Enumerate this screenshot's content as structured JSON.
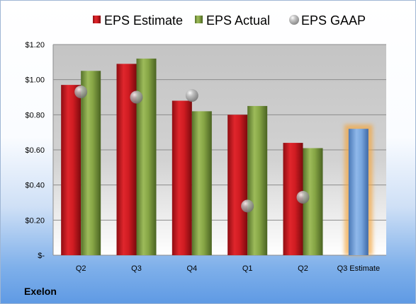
{
  "company_name": "Exelon",
  "chart_data": {
    "type": "bar",
    "categories": [
      "Q2",
      "Q3",
      "Q4",
      "Q1",
      "Q2",
      "Q3 Estimate"
    ],
    "series": [
      {
        "name": "EPS Estimate",
        "values": [
          0.97,
          1.09,
          0.88,
          0.8,
          0.64,
          null
        ],
        "color": "#c0181f"
      },
      {
        "name": "EPS Actual",
        "values": [
          1.05,
          1.12,
          0.82,
          0.85,
          0.61,
          null
        ],
        "color": "#7a9a3a"
      },
      {
        "name": "EPS GAAP",
        "values": [
          0.93,
          0.9,
          0.91,
          0.28,
          0.33,
          null
        ],
        "color": "#9a9a9a"
      }
    ],
    "estimate_bar": {
      "category_index": 5,
      "value": 0.72,
      "color": "#6f9fd8",
      "glow": "#f3a640"
    },
    "yticks": [
      0,
      0.2,
      0.4,
      0.6,
      0.8,
      1.0,
      1.2
    ],
    "ytick_labels": [
      "$-",
      "$0.20",
      "$0.40",
      "$0.60",
      "$0.80",
      "$1.00",
      "$1.20"
    ],
    "ylim": [
      0,
      1.2
    ],
    "grid": true,
    "legend_position": "top"
  }
}
